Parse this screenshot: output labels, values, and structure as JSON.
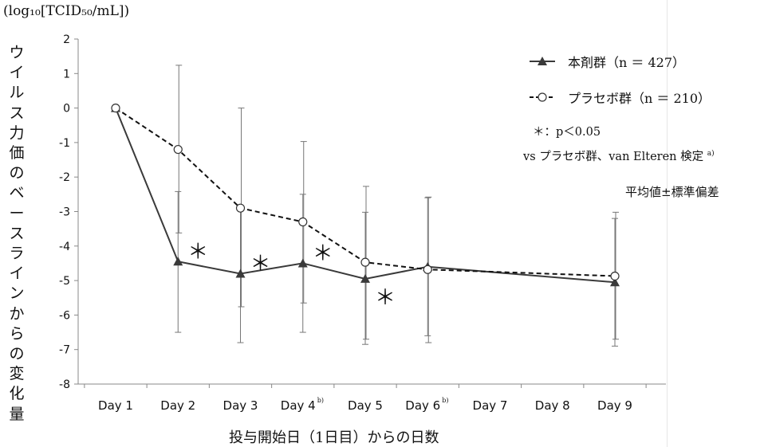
{
  "unit_label": "(log₁₀[TCID₅₀/mL])",
  "ylabel": "ウイルス力価のベースラインからの変化量",
  "xlabel": "投与開始日（1日目）からの日数",
  "legend": {
    "series1_label": "本剤群（n ＝ 427）",
    "series2_label": "プラセボ群（n ＝ 210）",
    "sig_note": "＊：p＜0.05",
    "test_note": "vs プラセボ群、van Elteren 検定",
    "test_note_sup": "a)"
  },
  "error_note": "平均値±標準偏差",
  "chart_data": {
    "type": "line",
    "categories": [
      "Day 1",
      "Day 2",
      "Day 3",
      "Day 4",
      "Day 5",
      "Day 6",
      "Day 7",
      "Day 8",
      "Day 9"
    ],
    "category_notes": {
      "Day 4": "b)",
      "Day 6": "b)"
    },
    "ylim": [
      -8,
      2
    ],
    "yticks": [
      2,
      1,
      0,
      -1,
      -2,
      -3,
      -4,
      -5,
      -6,
      -7,
      -8
    ],
    "grid": false,
    "series": [
      {
        "name": "本剤群（n ＝ 427）",
        "marker": "filled-triangle",
        "line_style": "solid",
        "color": "#3a3a3a",
        "x": [
          "Day 1",
          "Day 2",
          "Day 3",
          "Day 4",
          "Day 5",
          "Day 6",
          "Day 9"
        ],
        "values": [
          0,
          -4.45,
          -4.8,
          -4.5,
          -4.95,
          -4.6,
          -5.05
        ],
        "error_low": [
          0,
          -6.5,
          -6.8,
          -6.5,
          -6.85,
          -6.6,
          -6.9
        ],
        "error_high": [
          0,
          -2.42,
          -2.85,
          -2.5,
          -3.02,
          -2.6,
          -3.2
        ]
      },
      {
        "name": "プラセボ群（n ＝ 210）",
        "marker": "open-circle",
        "line_style": "dashed",
        "color": "#111111",
        "x": [
          "Day 1",
          "Day 2",
          "Day 3",
          "Day 4",
          "Day 5",
          "Day 6",
          "Day 9"
        ],
        "values": [
          0,
          -1.2,
          -2.9,
          -3.3,
          -4.47,
          -4.68,
          -4.87
        ],
        "error_low": [
          0,
          -3.62,
          -5.76,
          -5.65,
          -6.7,
          -6.8,
          -6.7
        ],
        "error_high": [
          0,
          1.24,
          0.0,
          -0.97,
          -2.27,
          -2.58,
          -3.02
        ]
      }
    ],
    "significance": [
      {
        "x": "Day 2",
        "label": "＊",
        "position": "above-right"
      },
      {
        "x": "Day 3",
        "label": "＊",
        "position": "above-right"
      },
      {
        "x": "Day 4",
        "label": "＊",
        "position": "above-right"
      },
      {
        "x": "Day 5",
        "label": "＊",
        "position": "below-right"
      }
    ]
  }
}
